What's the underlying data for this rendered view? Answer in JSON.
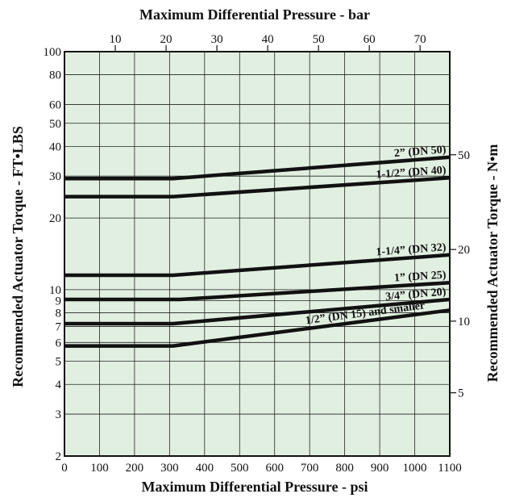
{
  "chart_data": {
    "type": "line",
    "top_title": "Maximum Differential Pressure - bar",
    "bottom_title": "Maximum Differential Pressure - psi",
    "left_title": "Recommended Actuator Torque - FT•LBS",
    "right_title": "Recommended Actuator Torque - N•m",
    "x_scale": "linear",
    "xlim": [
      0,
      1100
    ],
    "y_scale": "log",
    "ylim": [
      2,
      100
    ],
    "x_ticks": [
      0,
      100,
      200,
      300,
      400,
      500,
      600,
      700,
      800,
      900,
      1000,
      1100
    ],
    "x_tick_labels": [
      "0",
      "100",
      "200",
      "300",
      "400",
      "500",
      "600",
      "700",
      "800",
      "900",
      "1000",
      "1100"
    ],
    "top_ticks": [
      10,
      20,
      30,
      40,
      50,
      60,
      70
    ],
    "top_tick_labels": [
      "10",
      "20",
      "30",
      "40",
      "50",
      "60",
      "70"
    ],
    "y_ticks": [
      2,
      3,
      4,
      5,
      6,
      7,
      8,
      9,
      10,
      20,
      30,
      40,
      50,
      60,
      80,
      100
    ],
    "y_tick_labels": [
      "2",
      "3",
      "4",
      "5",
      "6",
      "7",
      "8",
      "9",
      "10",
      "20",
      "30",
      "40",
      "50",
      "60",
      "80",
      "100"
    ],
    "right_ticks": [
      5,
      10,
      20,
      50
    ],
    "right_tick_labels": [
      "5",
      "10",
      "20",
      "50"
    ],
    "grid": true,
    "background": "#e1efe1",
    "line_color": "#111111",
    "series": [
      {
        "name": "2” (DN 50)",
        "x": [
          0,
          310,
          1100
        ],
        "y": [
          29.3,
          29.3,
          36
        ]
      },
      {
        "name": "1-1/2” (DN 40)",
        "x": [
          0,
          310,
          1100
        ],
        "y": [
          24.6,
          24.6,
          29.5
        ]
      },
      {
        "name": "1-1/4” (DN 32)",
        "x": [
          0,
          310,
          1100
        ],
        "y": [
          11.5,
          11.5,
          14
        ]
      },
      {
        "name": "1” (DN 25)",
        "x": [
          0,
          330,
          1100
        ],
        "y": [
          9.1,
          9.1,
          10.7
        ]
      },
      {
        "name": "3/4” (DN 20)",
        "x": [
          0,
          310,
          1100
        ],
        "y": [
          7.2,
          7.2,
          9.1
        ]
      },
      {
        "name": "1/2” (DN 15) and smaller",
        "x": [
          0,
          310,
          1100
        ],
        "y": [
          5.8,
          5.8,
          8.2
        ]
      }
    ]
  }
}
